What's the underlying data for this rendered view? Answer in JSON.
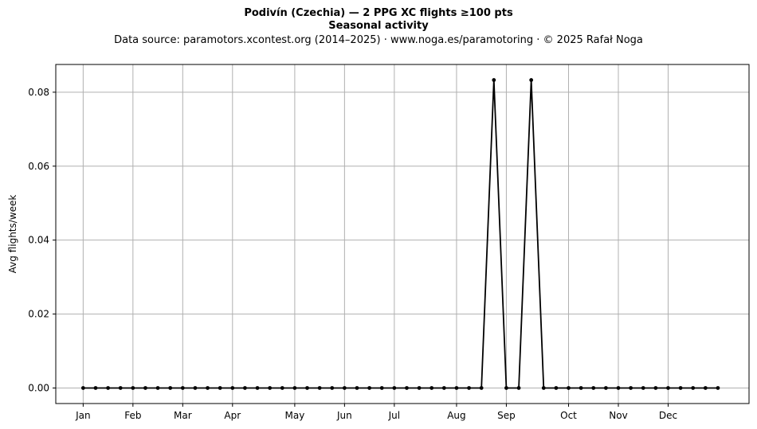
{
  "chart_data": {
    "type": "line",
    "title": "Podivín (Czechia)  —  2 PPG XC flights ≥100 pts",
    "subtitle": "Seasonal activity",
    "source_note": "Data source: paramotors.xcontest.org (2014–2025)  ·  www.noga.es/paramotoring  ·  © 2025 Rafał Noga",
    "xlabel": "",
    "ylabel": "Avg flights/week",
    "x_unit": "week of year",
    "xlim": [
      -1.2,
      54.5
    ],
    "ylim": [
      -0.0042,
      0.0875
    ],
    "yticks": [
      0.0,
      0.02,
      0.04,
      0.06,
      0.08
    ],
    "ytick_labels": [
      "0.00",
      "0.02",
      "0.04",
      "0.06",
      "0.08"
    ],
    "xticks": [
      1,
      5,
      9,
      13,
      18,
      22,
      26,
      31,
      35,
      40,
      44,
      48
    ],
    "xtick_labels": [
      "Jan",
      "Feb",
      "Mar",
      "Apr",
      "May",
      "Jun",
      "Jul",
      "Aug",
      "Sep",
      "Oct",
      "Nov",
      "Dec"
    ],
    "grid": true,
    "line_color": "#000000",
    "grid_color": "#b0b0b0",
    "series": [
      {
        "x": [
          1,
          2,
          3,
          4,
          5,
          6,
          7,
          8,
          9,
          10,
          11,
          12,
          13,
          14,
          15,
          16,
          17,
          18,
          19,
          20,
          21,
          22,
          23,
          24,
          25,
          26,
          27,
          28,
          29,
          30,
          31,
          32,
          33,
          34,
          35,
          36,
          37,
          38,
          39,
          40,
          41,
          42,
          43,
          44,
          45,
          46,
          47,
          48,
          49,
          50,
          51,
          52
        ],
        "values": [
          0,
          0,
          0,
          0,
          0,
          0,
          0,
          0,
          0,
          0,
          0,
          0,
          0,
          0,
          0,
          0,
          0,
          0,
          0,
          0,
          0,
          0,
          0,
          0,
          0,
          0,
          0,
          0,
          0,
          0,
          0,
          0,
          0,
          0.0833,
          0,
          0,
          0.0833,
          0,
          0,
          0,
          0,
          0,
          0,
          0,
          0,
          0,
          0,
          0,
          0,
          0,
          0,
          0
        ]
      }
    ]
  }
}
